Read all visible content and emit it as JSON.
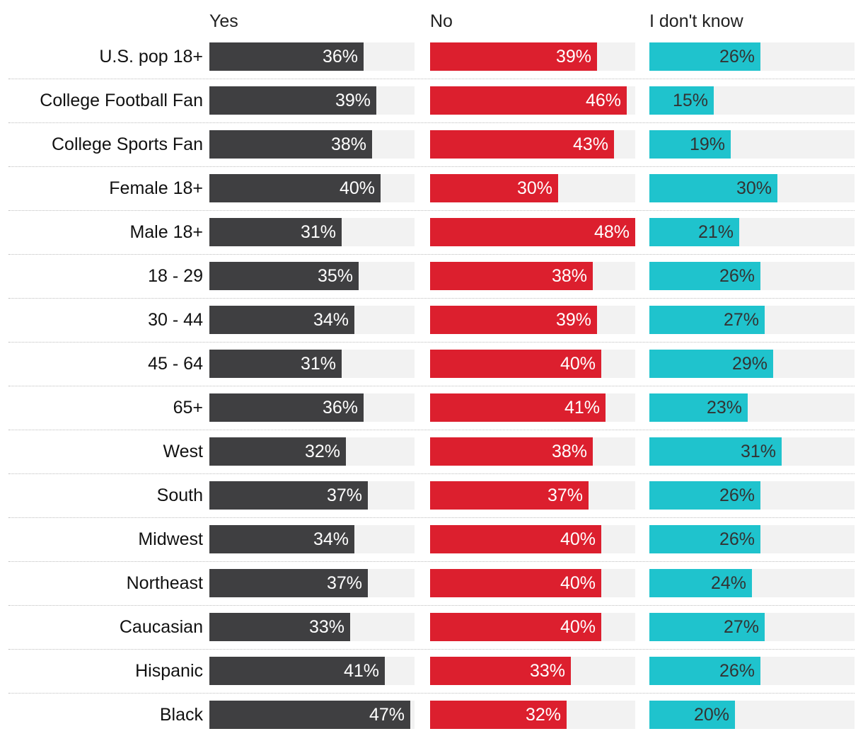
{
  "chart_data": {
    "type": "bar",
    "orientation": "horizontal",
    "layout": "small-multiples",
    "categories": [
      "U.S. pop 18+",
      "College Football Fan",
      "College Sports Fan",
      "Female 18+",
      "Male 18+",
      "18 - 29",
      "30 - 44",
      "45 - 64",
      "65+",
      "West",
      "South",
      "Midwest",
      "Northeast",
      "Caucasian",
      "Hispanic",
      "Black"
    ],
    "series": [
      {
        "name": "Yes",
        "color": "#3f3f41",
        "label_color": "#ffffff",
        "values": [
          36,
          39,
          38,
          40,
          31,
          35,
          34,
          31,
          36,
          32,
          37,
          34,
          37,
          33,
          41,
          47
        ]
      },
      {
        "name": "No",
        "color": "#dc1f2e",
        "label_color": "#ffffff",
        "values": [
          39,
          46,
          43,
          30,
          48,
          38,
          39,
          40,
          41,
          38,
          37,
          40,
          40,
          40,
          33,
          32
        ]
      },
      {
        "name": "I don't know",
        "color": "#1fc3cd",
        "label_color": "#333333",
        "values": [
          26,
          15,
          19,
          30,
          21,
          26,
          27,
          29,
          23,
          31,
          26,
          26,
          24,
          27,
          26,
          20
        ]
      }
    ],
    "value_suffix": "%",
    "xlim": [
      0,
      48
    ],
    "title": "",
    "xlabel": "",
    "ylabel": "",
    "grid": false,
    "legend": "column headers"
  }
}
